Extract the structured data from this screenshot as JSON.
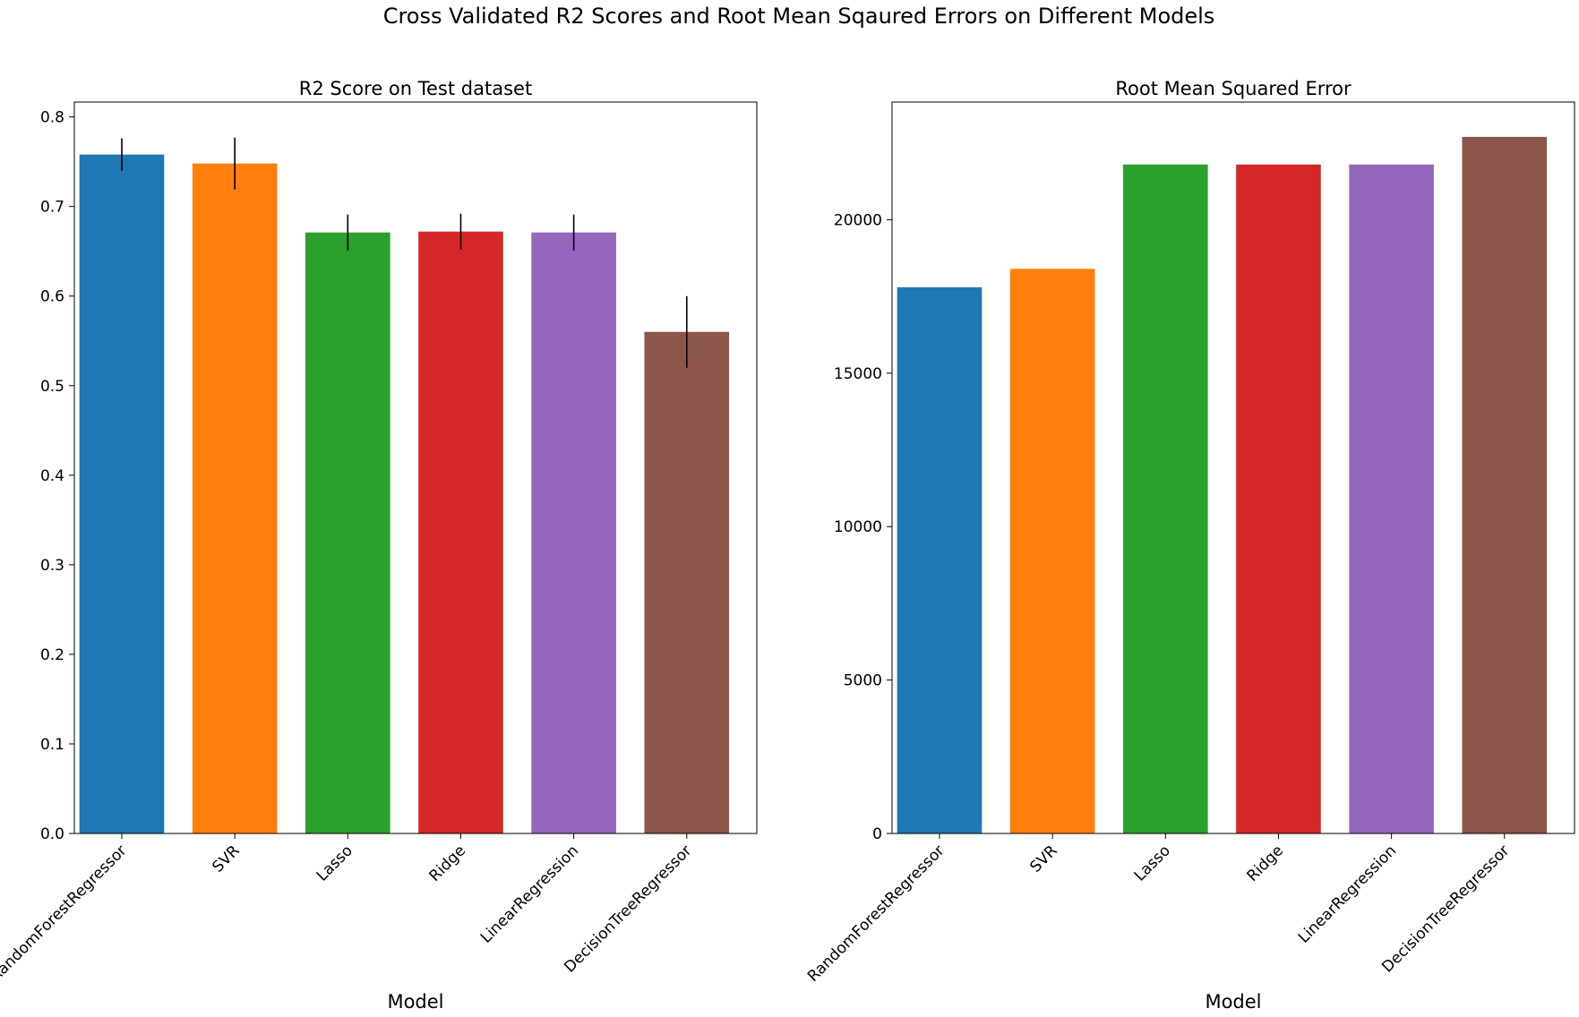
{
  "figure": {
    "suptitle": "Cross Validated R2 Scores and Root Mean Sqaured Errors on Different Models"
  },
  "colors": [
    "#1f77b4",
    "#ff7f0e",
    "#2ca02c",
    "#d62728",
    "#9467bd",
    "#8c564b"
  ],
  "chart_data": [
    {
      "type": "bar",
      "title": "R2 Score on Test dataset",
      "xlabel": "Model",
      "ylabel": "",
      "categories": [
        "RandomForestRegressor",
        "SVR",
        "Lasso",
        "Ridge",
        "LinearRegression",
        "DecisionTreeRegressor"
      ],
      "values": [
        0.758,
        0.748,
        0.671,
        0.672,
        0.671,
        0.56
      ],
      "error": [
        0.018,
        0.029,
        0.02,
        0.02,
        0.02,
        0.04
      ],
      "ylim": [
        0,
        0.8166
      ],
      "yticks": [
        0.0,
        0.1,
        0.2,
        0.3,
        0.4,
        0.5,
        0.6,
        0.7,
        0.8
      ],
      "ytick_labels": [
        "0.0",
        "0.1",
        "0.2",
        "0.3",
        "0.4",
        "0.5",
        "0.6",
        "0.7",
        "0.8"
      ],
      "grid": false,
      "legend": "none"
    },
    {
      "type": "bar",
      "title": "Root Mean Squared Error",
      "xlabel": "Model",
      "ylabel": "",
      "categories": [
        "RandomForestRegressor",
        "SVR",
        "Lasso",
        "Ridge",
        "LinearRegression",
        "DecisionTreeRegressor"
      ],
      "values": [
        17800,
        18400,
        21800,
        21800,
        21800,
        22700
      ],
      "ylim": [
        0,
        23835
      ],
      "yticks": [
        0,
        5000,
        10000,
        15000,
        20000
      ],
      "ytick_labels": [
        "0",
        "5000",
        "10000",
        "15000",
        "20000"
      ],
      "grid": false,
      "legend": "none"
    }
  ]
}
